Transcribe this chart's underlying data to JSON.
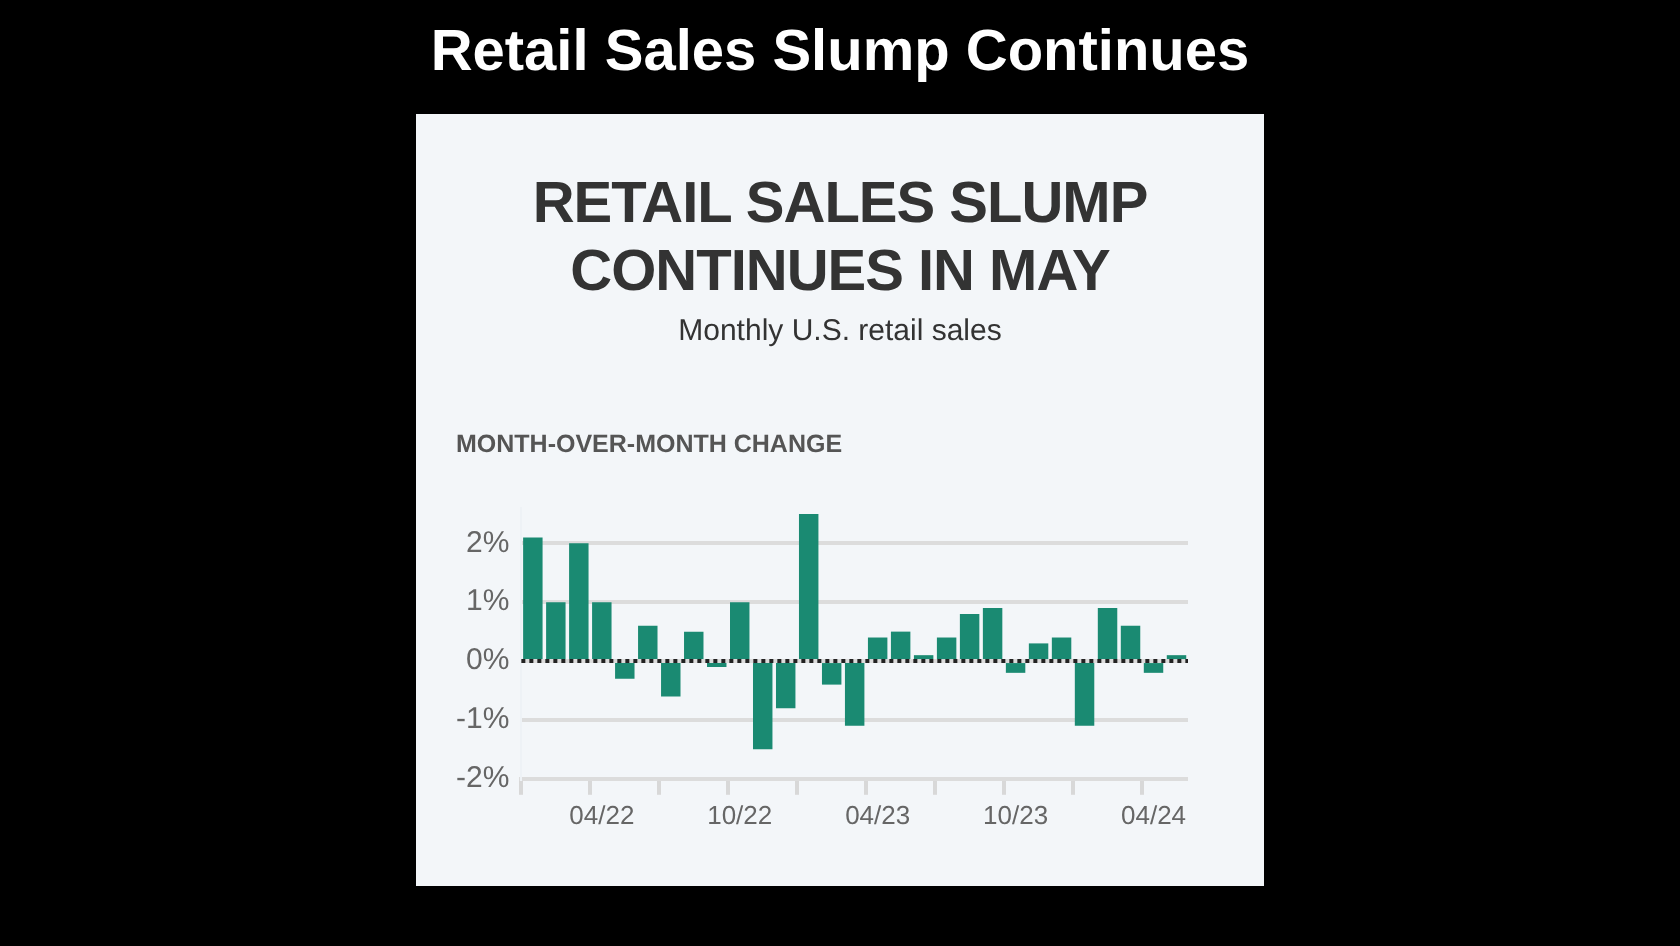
{
  "chart_data": {
    "type": "bar",
    "title": "RETAIL SALES SLUMP CONTINUES IN MAY",
    "subtitle": "Monthly U.S. retail sales",
    "ylabel": "MONTH-OVER-MONTH CHANGE",
    "annotations": [
      "Retail Sales Slump Continues"
    ],
    "categories": [
      null,
      null,
      null,
      "04/22",
      null,
      null,
      null,
      null,
      null,
      "10/22",
      null,
      null,
      null,
      null,
      null,
      "04/23",
      null,
      null,
      null,
      null,
      null,
      "10/23",
      null,
      null,
      null,
      null,
      null,
      "04/24",
      null
    ],
    "values": [
      2.1,
      1.0,
      2.0,
      1.0,
      -0.3,
      0.6,
      -0.6,
      0.5,
      -0.1,
      1.0,
      -1.5,
      -0.8,
      2.5,
      -0.4,
      -1.1,
      0.4,
      0.5,
      0.1,
      0.4,
      0.8,
      0.9,
      -0.2,
      0.3,
      0.4,
      -1.1,
      0.9,
      0.6,
      -0.2,
      0.1
    ],
    "color": "#1a8a72",
    "ylim": [
      -2,
      2.6
    ],
    "yticks": [
      {
        "value": -2,
        "label": "-2%"
      },
      {
        "value": -1,
        "label": "-1%"
      },
      {
        "value": 0,
        "label": "0%"
      },
      {
        "value": 1,
        "label": "1%"
      },
      {
        "value": 2,
        "label": "2%"
      }
    ],
    "grid": "y",
    "legend": false,
    "ref_lines": [
      {
        "axis": "y",
        "value": 0,
        "color": "#222222",
        "line_style": "dotted"
      }
    ]
  }
}
